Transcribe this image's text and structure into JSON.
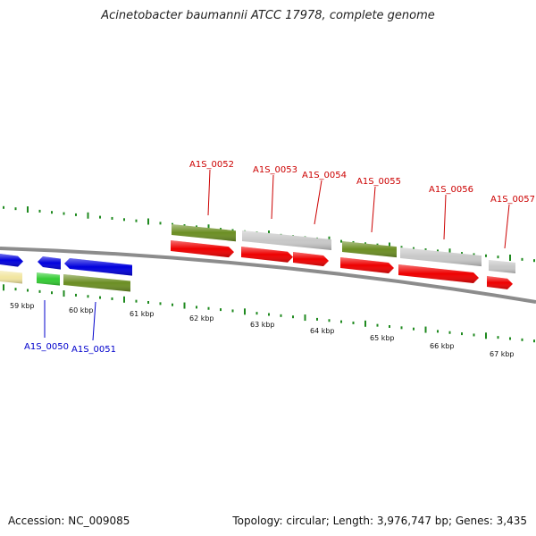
{
  "title": "Acinetobacter baumannii ATCC 17978, complete genome",
  "footer": {
    "accession_text": "Accession: NC_009085",
    "summary_text": "Topology: circular; Length: 3,976,747 bp; Genes: 3,435"
  },
  "colors": {
    "backbone": "#8c8c8c",
    "cds_red": "#ee0000",
    "cds_blue": "#0000dd",
    "gene_olive": "#6b8e23",
    "gene_green": "#33cc33",
    "gene_gray": "#c8c8c8",
    "gene_yellow": "#f2e6a0",
    "tick_green": "#1f8a1f",
    "label_forward": "#cc0000",
    "label_reverse": "#0000cc"
  },
  "scale_ticks_kbp": [
    "59 kbp",
    "60 kbp",
    "61 kbp",
    "62 kbp",
    "63 kbp",
    "64 kbp",
    "65 kbp",
    "66 kbp",
    "67 kbp"
  ],
  "gene_labels": [
    {
      "name": "A1S_0050",
      "strand": "reverse"
    },
    {
      "name": "A1S_0051",
      "strand": "reverse"
    },
    {
      "name": "A1S_0052",
      "strand": "forward"
    },
    {
      "name": "A1S_0053",
      "strand": "forward"
    },
    {
      "name": "A1S_0054",
      "strand": "forward"
    },
    {
      "name": "A1S_0055",
      "strand": "forward"
    },
    {
      "name": "A1S_0056",
      "strand": "forward"
    },
    {
      "name": "A1S_0057",
      "strand": "forward"
    }
  ]
}
